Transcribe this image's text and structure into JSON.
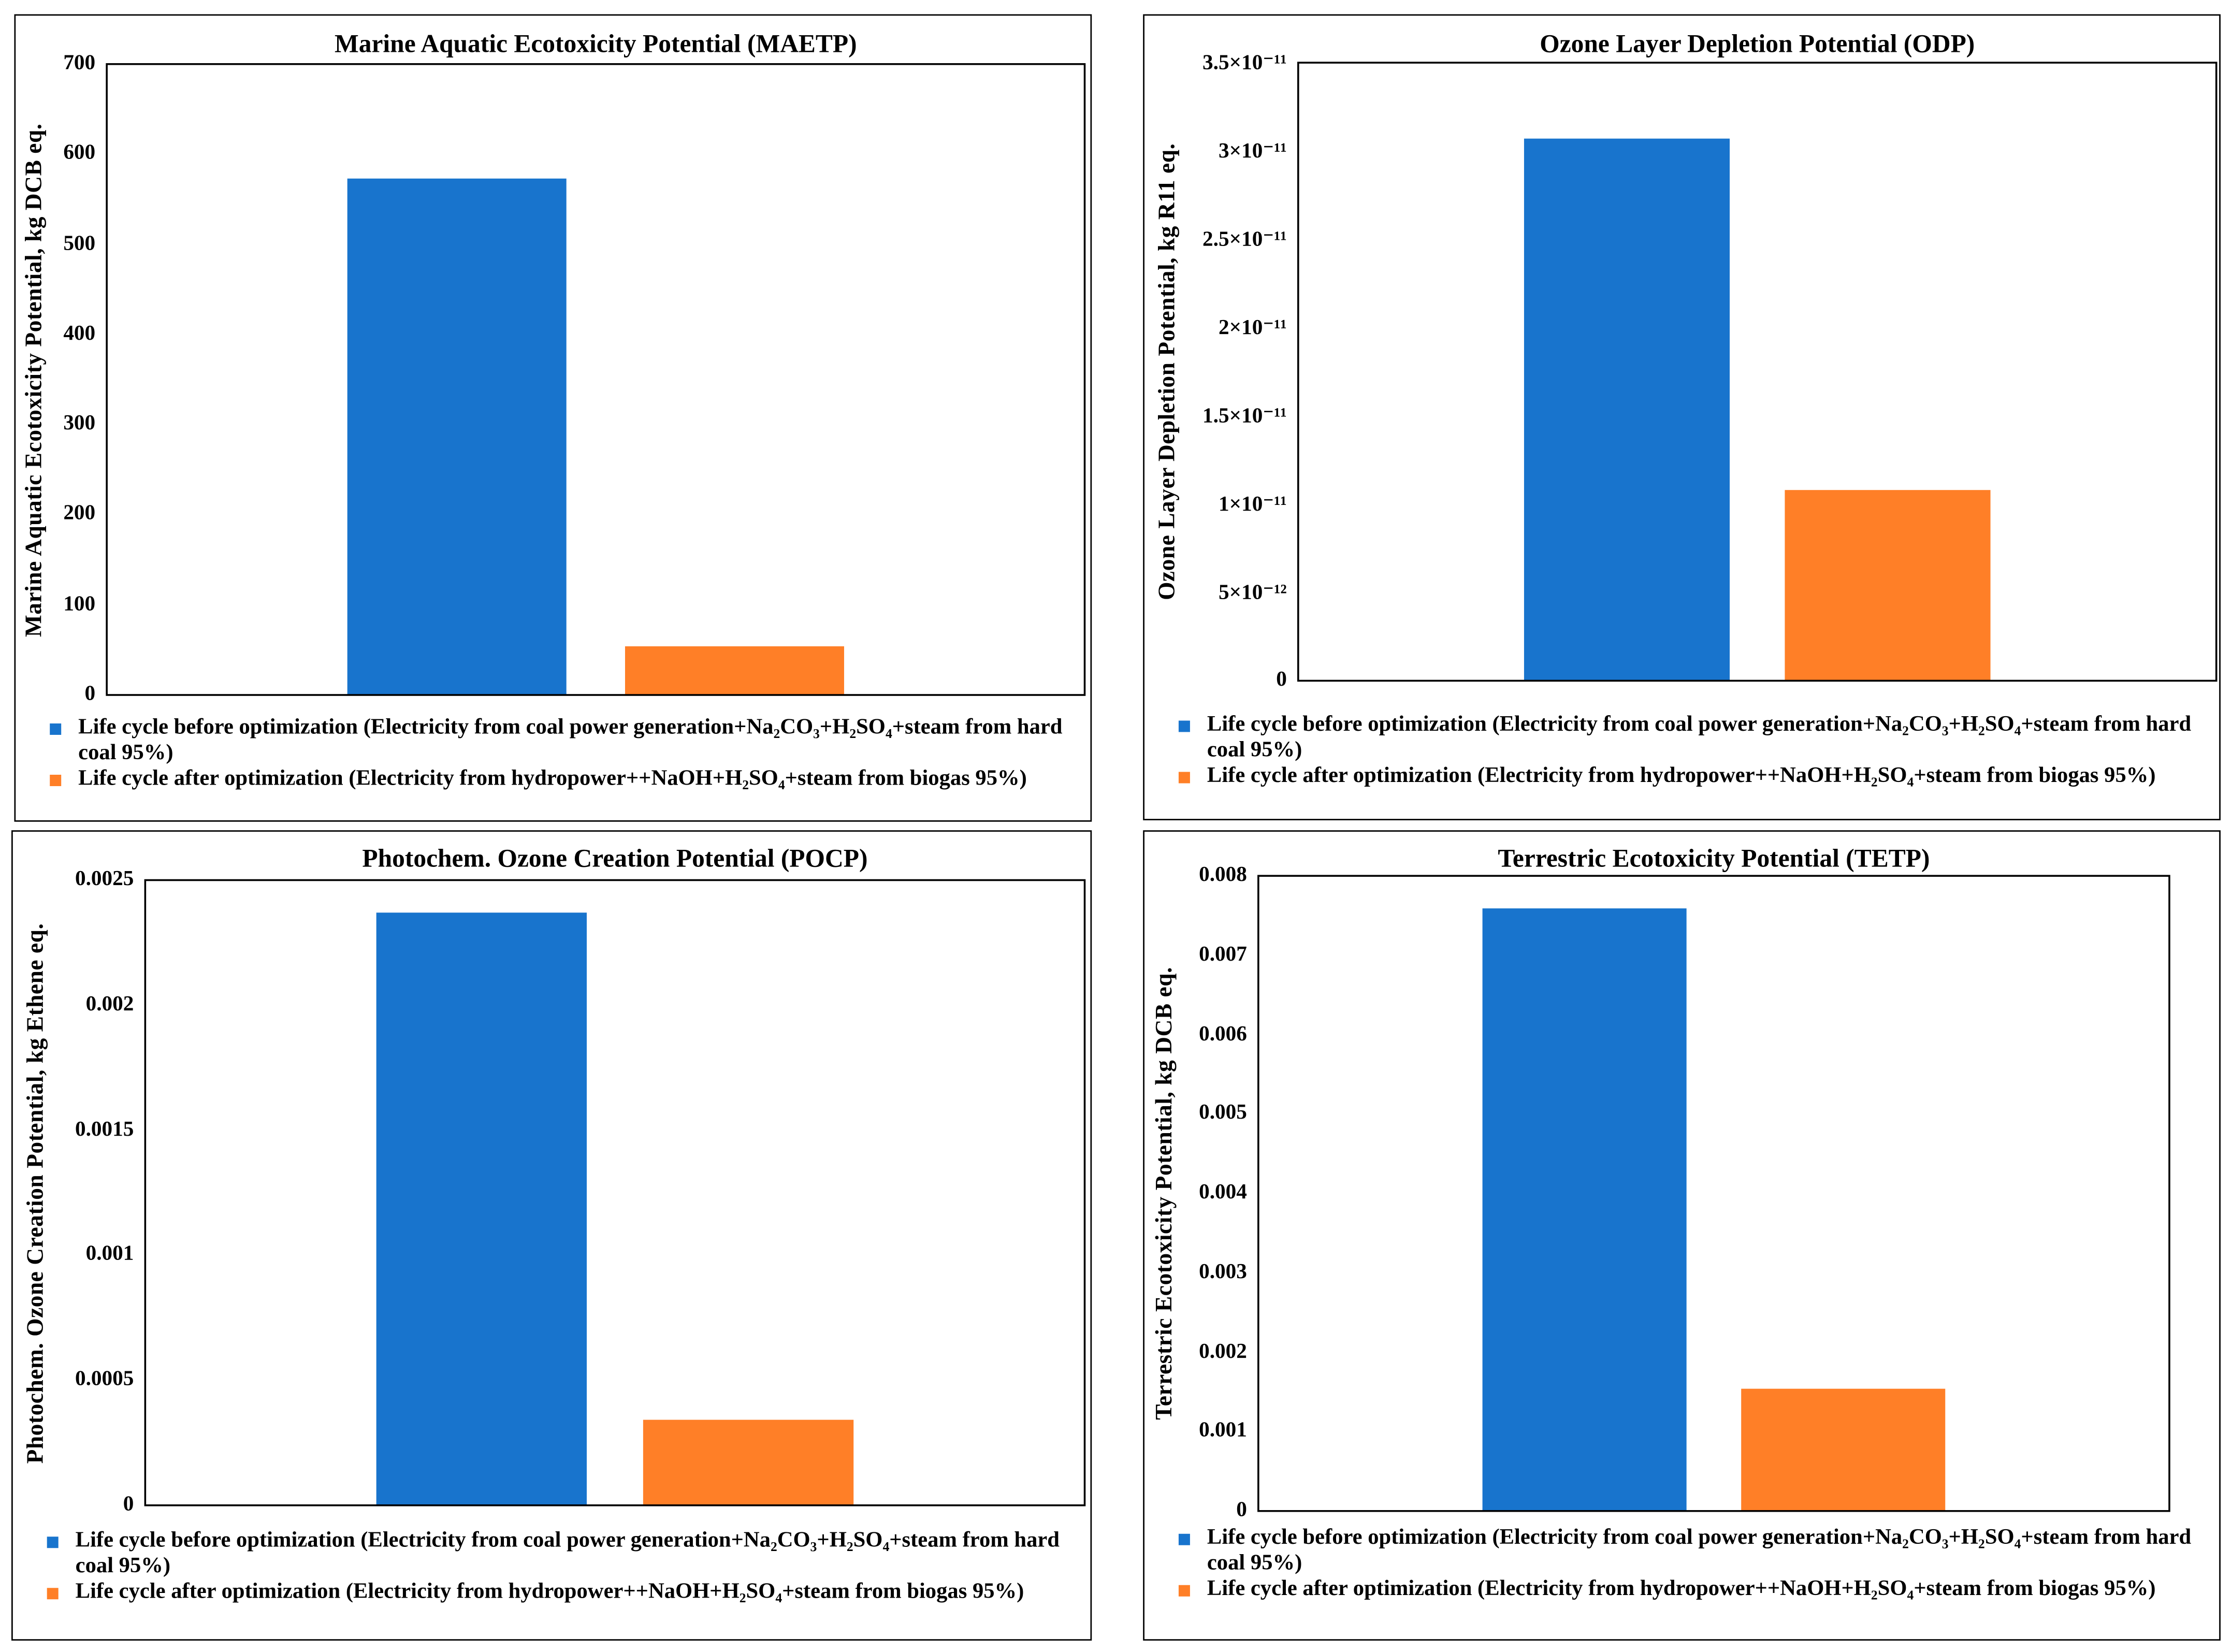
{
  "colors": {
    "before": "#1874CD",
    "after": "#FF7F27"
  },
  "legend": [
    {
      "label": "Life cycle before optimization (Electricity from coal power generation+Na₂CO₃+H₂SO₄+steam from hard coal 95%)",
      "color": "#1874CD"
    },
    {
      "label": "Life cycle after optimization (Electricity from hydropower++NaOH+H₂SO₄+steam from biogas 95%)",
      "color": "#FF7F27"
    }
  ],
  "chart_data": [
    {
      "type": "bar",
      "title": "Marine Aquatic Ecotoxicity Potential (MAETP)",
      "ylabel": "Marine Aquatic Ecotoxicity Potential, kg DCB eq.",
      "ylim": [
        0,
        700
      ],
      "yticks": [
        0,
        100,
        200,
        300,
        400,
        500,
        600,
        700
      ],
      "ytick_labels": [
        "0",
        "100",
        "200",
        "300",
        "400",
        "500",
        "600",
        "700"
      ],
      "grid": false,
      "legend_position": "bottom",
      "series": [
        {
          "name": "Life cycle before optimization (Electricity from coal power generation+Na₂CO₃+H₂SO₄+steam from hard coal 95%)",
          "value": 573
        },
        {
          "name": "Life cycle after optimization (Electricity from hydropower++NaOH+H₂SO₄+steam from biogas 95%)",
          "value": 54
        }
      ]
    },
    {
      "type": "bar",
      "title": "Ozone Layer Depletion Potential (ODP)",
      "ylabel": "Ozone Layer Depletion Potential, kg R11 eq.",
      "ylim": [
        0,
        3.5e-11
      ],
      "yticks": [
        0,
        5e-12,
        1e-11,
        1.5e-11,
        2e-11,
        2.5e-11,
        3e-11,
        3.5e-11
      ],
      "ytick_labels": [
        "0",
        "5×10⁻¹²",
        "1×10⁻¹¹",
        "1.5×10⁻¹¹",
        "2×10⁻¹¹",
        "2.5×10⁻¹¹",
        "3×10⁻¹¹",
        "3.5×10⁻¹¹"
      ],
      "grid": false,
      "legend_position": "bottom",
      "series": [
        {
          "name": "Life cycle before optimization (Electricity from coal power generation+Na₂CO₃+H₂SO₄+steam from hard coal 95%)",
          "value": 3.07e-11
        },
        {
          "name": "Life cycle after optimization (Electricity from hydropower++NaOH+H₂SO₄+steam from biogas 95%)",
          "value": 1.08e-11
        }
      ]
    },
    {
      "type": "bar",
      "title": "Photochem. Ozone Creation Potential (POCP)",
      "ylabel": "Photochem. Ozone Creation Potential, kg Ethene eq.",
      "ylim": [
        0,
        0.0025
      ],
      "yticks": [
        0,
        0.0005,
        0.001,
        0.0015,
        0.002,
        0.0025
      ],
      "ytick_labels": [
        "0",
        "0.0005",
        "0.001",
        "0.0015",
        "0.002",
        "0.0025"
      ],
      "grid": false,
      "legend_position": "bottom",
      "series": [
        {
          "name": "Life cycle before optimization (Electricity from coal power generation+Na₂CO₃+H₂SO₄+steam from hard coal 95%)",
          "value": 0.00237
        },
        {
          "name": "Life cycle after optimization (Electricity from hydropower++NaOH+H₂SO₄+steam from biogas 95%)",
          "value": 0.000342
        }
      ]
    },
    {
      "type": "bar",
      "title": "Terrestric Ecotoxicity Potential (TETP)",
      "ylabel": "Terrestric Ecotoxicity Potential, kg DCB eq.",
      "ylim": [
        0,
        0.008
      ],
      "yticks": [
        0,
        0.001,
        0.002,
        0.003,
        0.004,
        0.005,
        0.006,
        0.007,
        0.008
      ],
      "ytick_labels": [
        "0",
        "0.001",
        "0.002",
        "0.003",
        "0.004",
        "0.005",
        "0.006",
        "0.007",
        "0.008"
      ],
      "grid": false,
      "legend_position": "bottom",
      "series": [
        {
          "name": "Life cycle before optimization (Electricity from coal power generation+Na₂CO₃+H₂SO₄+steam from hard coal 95%)",
          "value": 0.00759
        },
        {
          "name": "Life cycle after optimization (Electricity from hydropower++NaOH+H₂SO₄+steam from biogas 95%)",
          "value": 0.00154
        }
      ]
    }
  ]
}
